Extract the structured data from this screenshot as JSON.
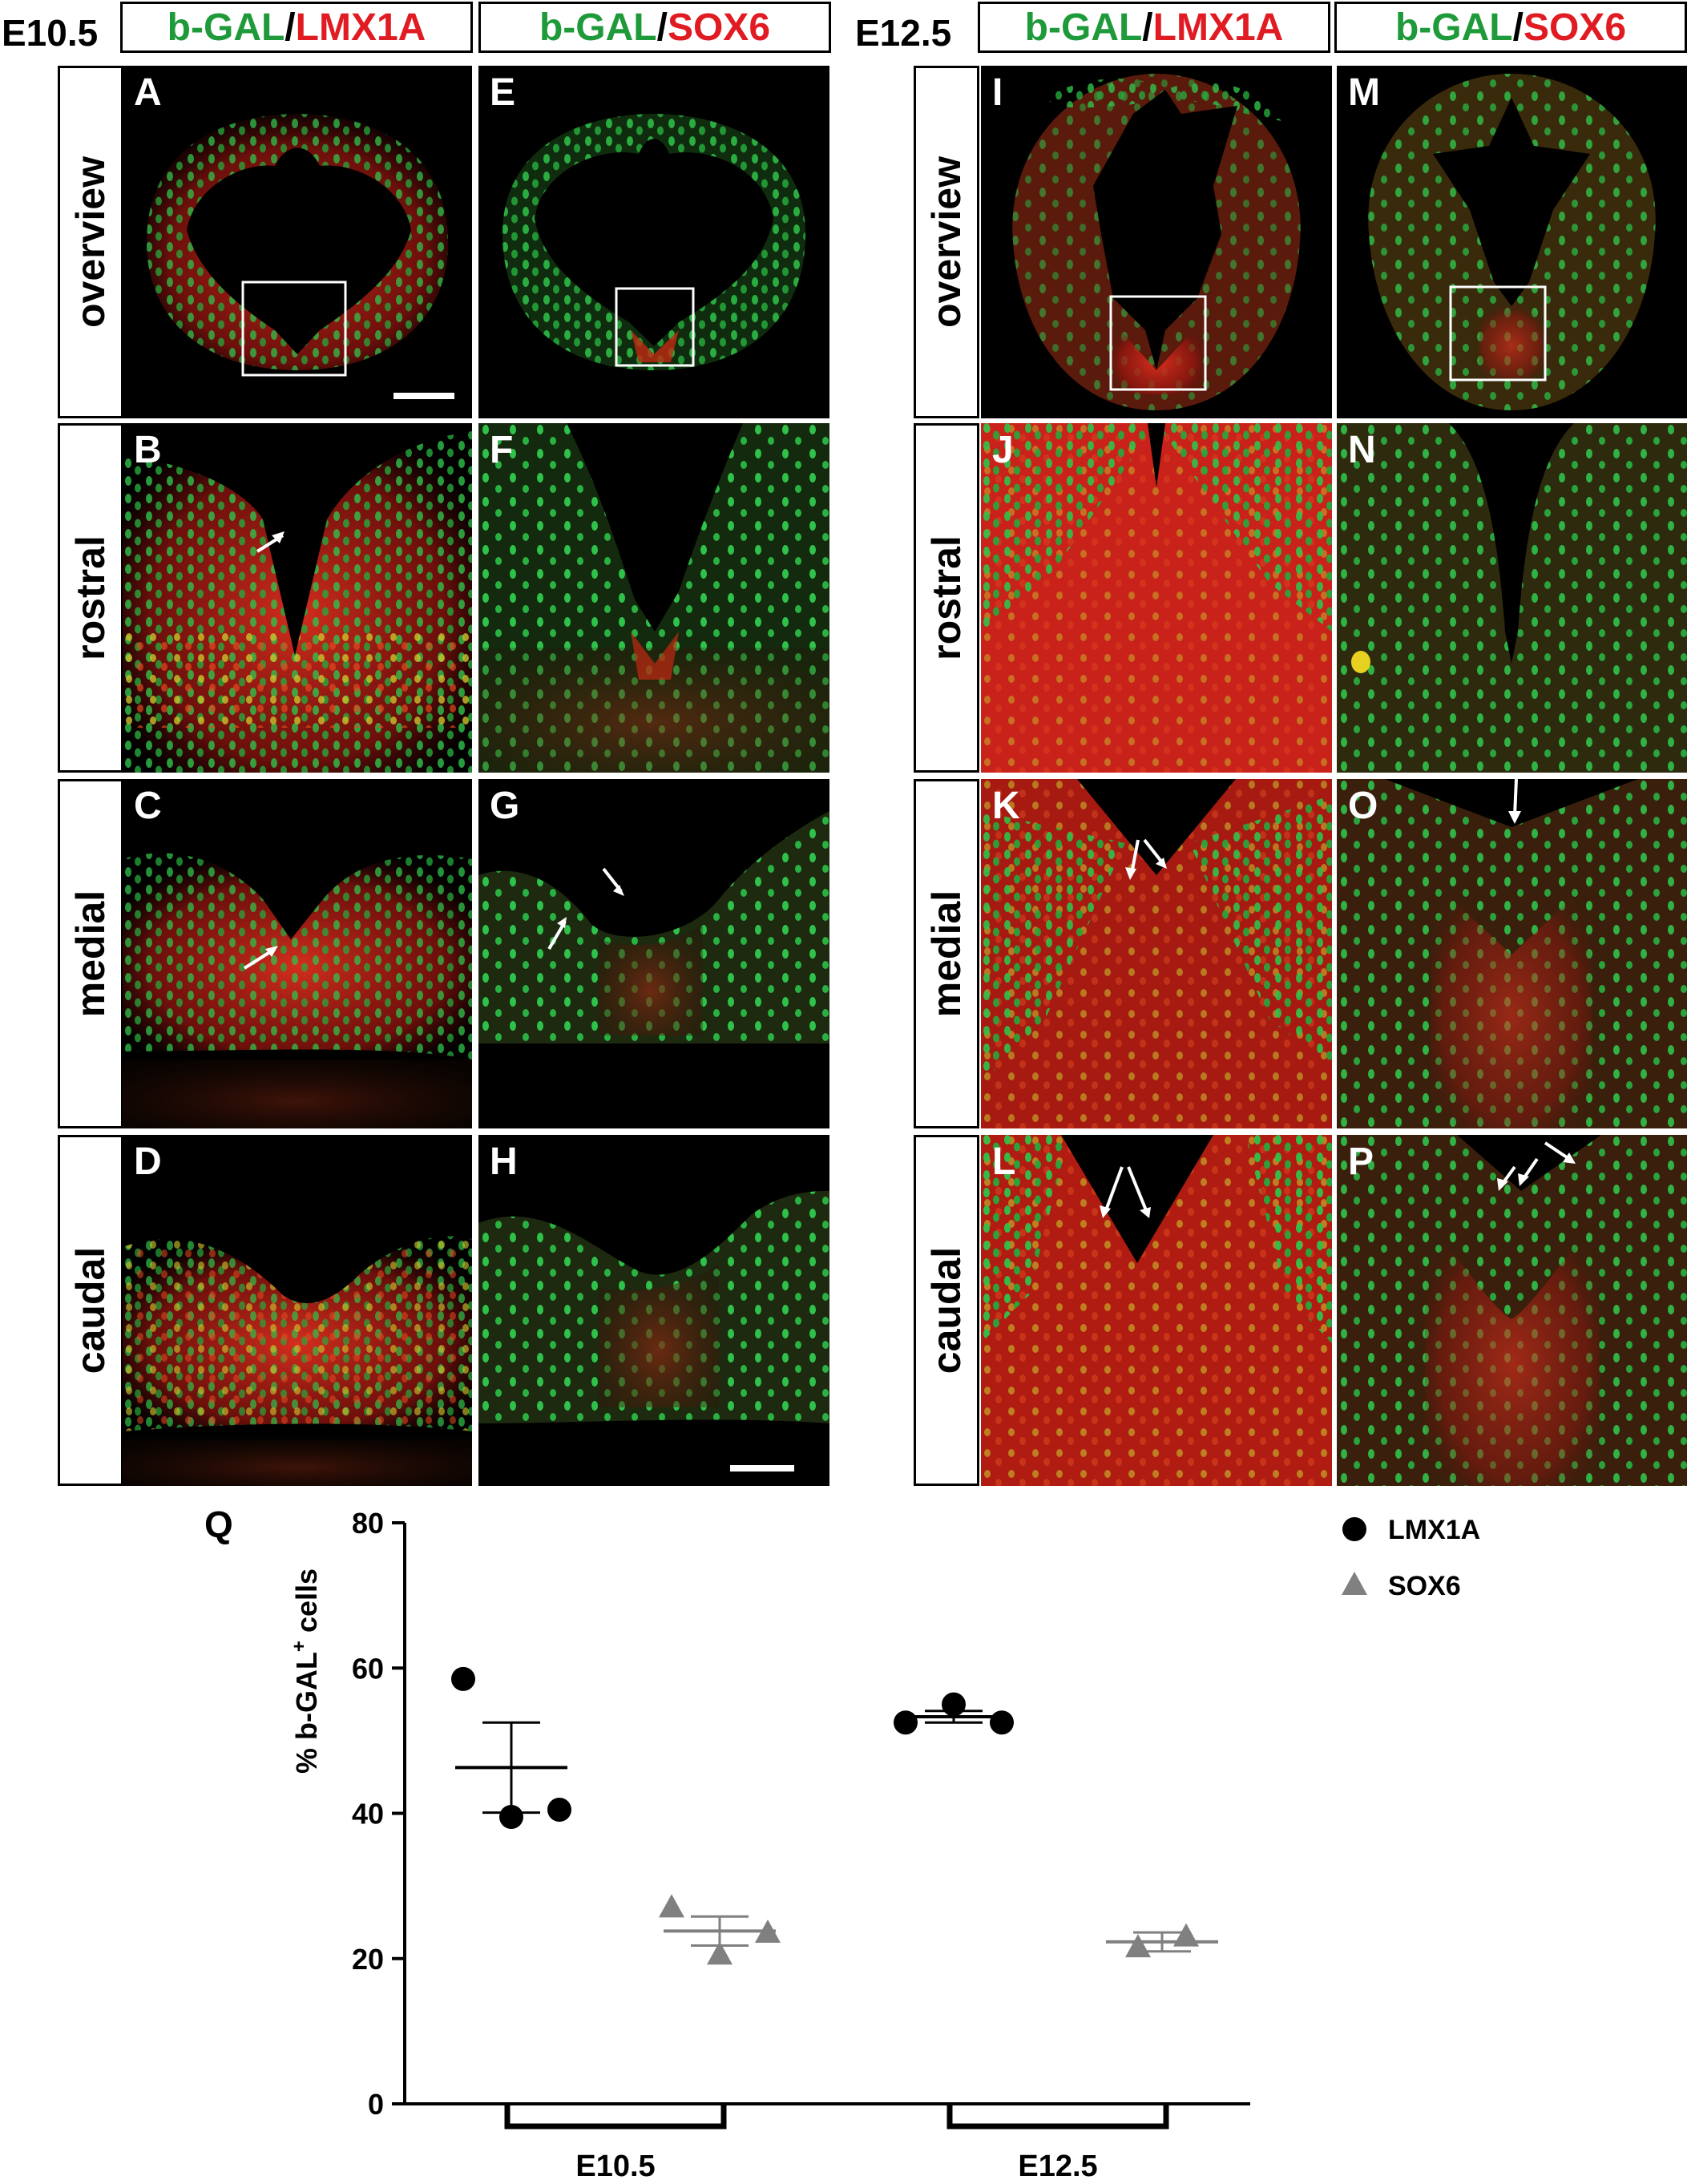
{
  "stages": {
    "left": "E10.5",
    "right": "E12.5"
  },
  "channels": {
    "lmx": {
      "a": "b-GAL",
      "sep": " / ",
      "b": "LMX1A"
    },
    "sox": {
      "a": "b-GAL",
      "sep": " / ",
      "b": "SOX6"
    }
  },
  "rows": [
    "overview",
    "rostral",
    "medial",
    "caudal"
  ],
  "panel_letters": {
    "c1": [
      "A",
      "B",
      "C",
      "D"
    ],
    "c2": [
      "E",
      "F",
      "G",
      "H"
    ],
    "c3": [
      "I",
      "J",
      "K",
      "L"
    ],
    "c4": [
      "M",
      "N",
      "O",
      "P"
    ]
  },
  "colors": {
    "green": "#1f9a3a",
    "red": "#e01b22",
    "series_lmx": "#000000",
    "series_sox": "#808080"
  },
  "chart_data": {
    "type": "scatter",
    "panel_label": "Q",
    "ylabel": "% b-GAL",
    "ylabel_sup": "+",
    "ylabel_tail": " cells",
    "ylim": [
      0,
      80
    ],
    "yticks": [
      0,
      20,
      40,
      60,
      80
    ],
    "categories": [
      "E10.5",
      "E12.5"
    ],
    "legend_position": "top-right",
    "series": [
      {
        "name": "LMX1A",
        "marker": "circle",
        "color": "#000000",
        "points": [
          [
            0,
            58.5
          ],
          [
            0,
            39.5
          ],
          [
            0,
            40.5
          ],
          [
            1,
            52.5
          ],
          [
            1,
            55.0
          ],
          [
            1,
            52.5
          ]
        ],
        "means": [
          46.3,
          53.3
        ],
        "sem": [
          6.2,
          0.8
        ]
      },
      {
        "name": "SOX6",
        "marker": "triangle",
        "color": "#808080",
        "points": [
          [
            0,
            27.0
          ],
          [
            0,
            20.5
          ],
          [
            0,
            23.5
          ],
          [
            1,
            21.5
          ],
          [
            1,
            23.0
          ]
        ],
        "means": [
          23.8,
          22.3
        ],
        "sem": [
          2.0,
          1.3
        ]
      }
    ]
  }
}
